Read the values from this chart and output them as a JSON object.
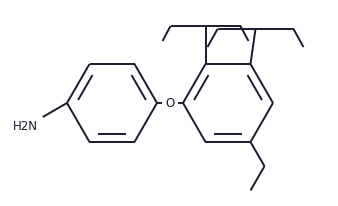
{
  "bg_color": "#ffffff",
  "line_color": "#1a1a2e",
  "line_width": 1.4,
  "font_size": 8.5,
  "label_color": "#1a1a2e",
  "figsize": [
    3.38,
    2.06
  ],
  "dpi": 100,
  "oxy_label": "O",
  "nh2_label": "H2N"
}
